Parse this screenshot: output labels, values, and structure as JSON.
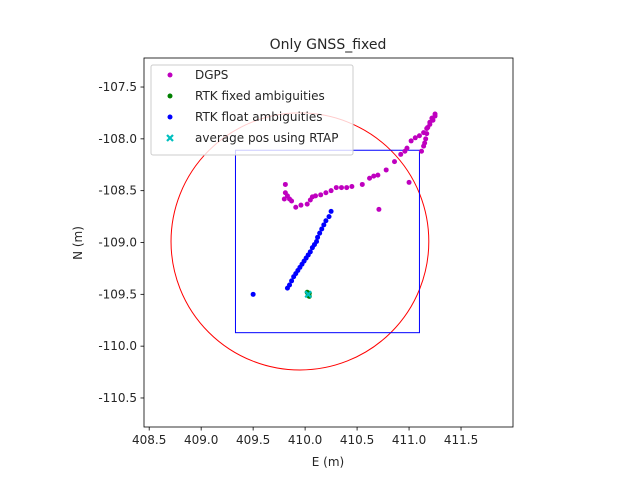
{
  "chart_data": {
    "type": "scatter",
    "title": "Only GNSS_fixed",
    "xlabel": "E (m)",
    "ylabel": "N (m)",
    "xlim": [
      408.45,
      412.0
    ],
    "ylim": [
      -110.78,
      -107.22
    ],
    "xticks": [
      408.5,
      409.0,
      409.5,
      410.0,
      410.5,
      411.0,
      411.5
    ],
    "xtick_labels": [
      "408.5",
      "409.0",
      "409.5",
      "410.0",
      "410.5",
      "411.0",
      "411.5"
    ],
    "yticks": [
      -107.5,
      -108.0,
      -108.5,
      -109.0,
      -109.5,
      -110.0,
      -110.5
    ],
    "ytick_labels": [
      "-107.5",
      "-108.0",
      "-108.5",
      "-109.0",
      "-109.5",
      "-110.0",
      "-110.5"
    ],
    "grid": false,
    "legend_position": "top-left",
    "series": [
      {
        "name": "DGPS",
        "color": "#bf00bf",
        "marker": "circle",
        "points": [
          [
            409.8,
            -108.58
          ],
          [
            409.81,
            -108.52
          ],
          [
            409.81,
            -108.44
          ],
          [
            409.83,
            -108.55
          ],
          [
            409.85,
            -108.58
          ],
          [
            409.87,
            -108.6
          ],
          [
            409.91,
            -108.66
          ],
          [
            409.96,
            -108.64
          ],
          [
            410.02,
            -108.63
          ],
          [
            410.05,
            -108.59
          ],
          [
            410.07,
            -108.56
          ],
          [
            410.1,
            -108.55
          ],
          [
            410.15,
            -108.54
          ],
          [
            410.2,
            -108.52
          ],
          [
            410.25,
            -108.5
          ],
          [
            410.3,
            -108.47
          ],
          [
            410.35,
            -108.47
          ],
          [
            410.4,
            -108.47
          ],
          [
            410.45,
            -108.46
          ],
          [
            410.55,
            -108.44
          ],
          [
            410.62,
            -108.38
          ],
          [
            410.66,
            -108.36
          ],
          [
            410.7,
            -108.35
          ],
          [
            410.78,
            -108.3
          ],
          [
            410.86,
            -108.22
          ],
          [
            410.92,
            -108.15
          ],
          [
            410.98,
            -108.09
          ],
          [
            411.02,
            -108.02
          ],
          [
            411.06,
            -107.99
          ],
          [
            411.1,
            -107.97
          ],
          [
            411.14,
            -107.94
          ],
          [
            411.17,
            -107.9
          ],
          [
            411.2,
            -107.86
          ],
          [
            411.23,
            -107.82
          ],
          [
            411.25,
            -107.78
          ],
          [
            411.25,
            -107.76
          ],
          [
            411.22,
            -107.8
          ],
          [
            411.2,
            -107.84
          ],
          [
            411.18,
            -107.89
          ],
          [
            411.17,
            -107.95
          ],
          [
            411.16,
            -108.0
          ],
          [
            411.15,
            -108.04
          ],
          [
            411.14,
            -108.07
          ],
          [
            411.12,
            -108.12
          ],
          [
            410.96,
            -108.12
          ],
          [
            411.0,
            -108.42
          ],
          [
            410.71,
            -108.68
          ]
        ]
      },
      {
        "name": "RTK fixed ambiguities",
        "color": "#008000",
        "marker": "circle",
        "points": [
          [
            410.02,
            -109.48
          ],
          [
            410.03,
            -109.5
          ],
          [
            410.04,
            -109.49
          ],
          [
            410.03,
            -109.51
          ],
          [
            410.04,
            -109.52
          ]
        ]
      },
      {
        "name": "RTK float ambiguities",
        "color": "#0000ff",
        "marker": "circle",
        "points": [
          [
            409.5,
            -109.5
          ],
          [
            409.83,
            -109.44
          ],
          [
            409.85,
            -109.41
          ],
          [
            409.87,
            -109.37
          ],
          [
            409.89,
            -109.33
          ],
          [
            409.91,
            -109.3
          ],
          [
            409.93,
            -109.27
          ],
          [
            409.95,
            -109.24
          ],
          [
            409.97,
            -109.21
          ],
          [
            409.99,
            -109.18
          ],
          [
            410.01,
            -109.15
          ],
          [
            410.03,
            -109.12
          ],
          [
            410.05,
            -109.09
          ],
          [
            410.07,
            -109.05
          ],
          [
            410.09,
            -109.02
          ],
          [
            410.11,
            -108.99
          ],
          [
            410.12,
            -108.95
          ],
          [
            410.14,
            -108.91
          ],
          [
            410.16,
            -108.87
          ],
          [
            410.18,
            -108.83
          ],
          [
            410.2,
            -108.79
          ],
          [
            410.23,
            -108.75
          ],
          [
            410.25,
            -108.7
          ]
        ]
      },
      {
        "name": "average pos using RTAP",
        "color": "#00bfbf",
        "marker": "x",
        "points": [
          [
            410.03,
            -109.5
          ]
        ]
      }
    ],
    "circle": {
      "center": [
        409.95,
        -108.99
      ],
      "radius": 1.24,
      "color": "#ff0000"
    },
    "rectangle": {
      "x": [
        409.33,
        411.1
      ],
      "y": [
        -109.87,
        -108.11
      ],
      "color": "#0000ff"
    }
  }
}
